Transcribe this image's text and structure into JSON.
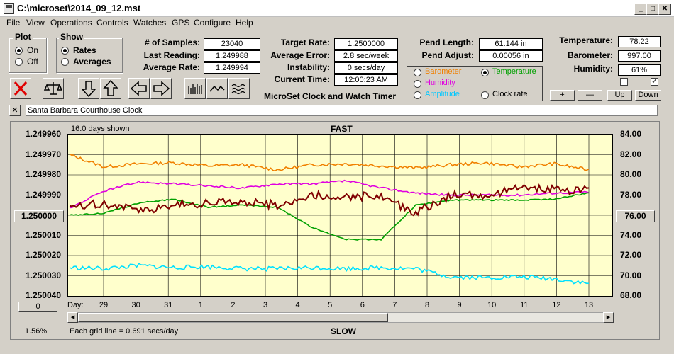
{
  "window": {
    "title": "C:\\microset\\2014_09_12.mst",
    "min": "_",
    "max": "□",
    "close": "✕"
  },
  "menu": [
    "File",
    "View",
    "Operations",
    "Controls",
    "Watches",
    "GPS",
    "Configure",
    "Help"
  ],
  "plot_group": {
    "title": "Plot",
    "on": "On",
    "off": "Off",
    "selected": "On"
  },
  "show_group": {
    "title": "Show",
    "rates": "Rates",
    "averages": "Averages",
    "selected": "Rates"
  },
  "stats": {
    "samples_label": "# of Samples:",
    "samples": "23040",
    "last_reading_label": "Last Reading:",
    "last_reading": "1.249988",
    "average_rate_label": "Average Rate:",
    "average_rate": "1.249994",
    "target_rate_label": "Target Rate:",
    "target_rate": "1.2500000",
    "average_error_label": "Average Error:",
    "average_error": "2.8 sec/week",
    "instability_label": "Instability:",
    "instability": "0 secs/day",
    "current_time_label": "Current Time:",
    "current_time": "12:00:23 AM",
    "pend_length_label": "Pend Length:",
    "pend_length": "61.144 in",
    "pend_adjust_label": "Pend Adjust:",
    "pend_adjust": "0.00056 in",
    "temperature_label": "Temperature:",
    "temperature": "78.22",
    "barometer_label": "Barometer:",
    "barometer": "997.00",
    "humidity_label": "Humidity:",
    "humidity": "61%"
  },
  "app_name": "MicroSet Clock and Watch Timer",
  "sensor_options": [
    {
      "label": "Barometer",
      "color": "#f08000",
      "selected": false
    },
    {
      "label": "Temperature",
      "color": "#00a000",
      "selected": true
    },
    {
      "label": "Humidity",
      "color": "#e000e0",
      "selected": false
    },
    {
      "label": "Clock rate",
      "color": "#000000",
      "selected": false
    },
    {
      "label": "Amplitude",
      "color": "#00d0ff",
      "selected": false
    }
  ],
  "scale_buttons": {
    "plus": "+",
    "minus": "—",
    "up": "Up",
    "down": "Down"
  },
  "clock_name": "Santa Barbara Courthouse Clock",
  "clear_button": "✕",
  "graph": {
    "days_shown": "16.0 days shown",
    "fast": "FAST",
    "slow": "SLOW",
    "grid_note": "Each grid line = 0.691 secs/day",
    "percent": "1.56%",
    "day_label": "Day:",
    "left_box": "1.250000",
    "right_box": "76.00",
    "scroll_box": "0",
    "left_axis": [
      "1.249960",
      "1.249970",
      "1.249980",
      "1.249990",
      "1.250000",
      "1.250010",
      "1.250020",
      "1.250030",
      "1.250040"
    ],
    "right_axis": [
      "84.00",
      "82.00",
      "80.00",
      "78.00",
      "76.00",
      "74.00",
      "72.00",
      "70.00",
      "68.00"
    ],
    "days": [
      "29",
      "30",
      "31",
      "1",
      "2",
      "3",
      "4",
      "5",
      "6",
      "7",
      "8",
      "9",
      "10",
      "11",
      "12",
      "13"
    ]
  },
  "chart_data": {
    "type": "line",
    "xlabel": "Day:",
    "x": [
      29,
      30,
      31,
      1,
      2,
      3,
      4,
      5,
      6,
      7,
      8,
      9,
      10,
      11,
      12,
      13
    ],
    "ylim_left": [
      1.24996,
      1.25004
    ],
    "ylim_right": [
      68,
      84
    ],
    "series": [
      {
        "axis": "right",
        "color": "#f08000",
        "values": [
          82.0,
          80.8,
          81.1,
          81.2,
          80.9,
          81.0,
          80.5,
          81.0,
          81.1,
          80.9,
          80.7,
          81.0,
          81.2,
          80.8,
          81.1,
          80.5
        ]
      },
      {
        "axis": "right",
        "color": "#e000e0",
        "values": [
          76.7,
          78.4,
          79.3,
          79.1,
          78.9,
          78.7,
          79.1,
          79.1,
          79.4,
          78.7,
          78.2,
          78.0,
          78.0,
          78.0,
          78.2,
          78.3
        ]
      },
      {
        "axis": "right",
        "color": "#00a000",
        "values": [
          76.0,
          76.2,
          77.2,
          77.6,
          76.8,
          77.0,
          76.8,
          74.8,
          73.6,
          73.6,
          77.0,
          77.5,
          77.5,
          77.5,
          77.6,
          78.2
        ]
      },
      {
        "axis": "left",
        "color": "#800000",
        "values": [
          1.249995,
          1.249994,
          1.249998,
          1.249995,
          1.249994,
          1.249993,
          1.249995,
          1.24999,
          1.249991,
          1.24999,
          1.249999,
          1.24999,
          1.24999,
          1.249987,
          1.249987,
          1.249988
        ]
      },
      {
        "axis": "right",
        "color": "#00e0ff",
        "values": [
          70.8,
          70.7,
          71.0,
          70.8,
          70.9,
          70.7,
          70.7,
          70.8,
          70.7,
          70.8,
          70.7,
          69.9,
          69.8,
          69.9,
          69.7,
          69.2
        ]
      }
    ]
  }
}
